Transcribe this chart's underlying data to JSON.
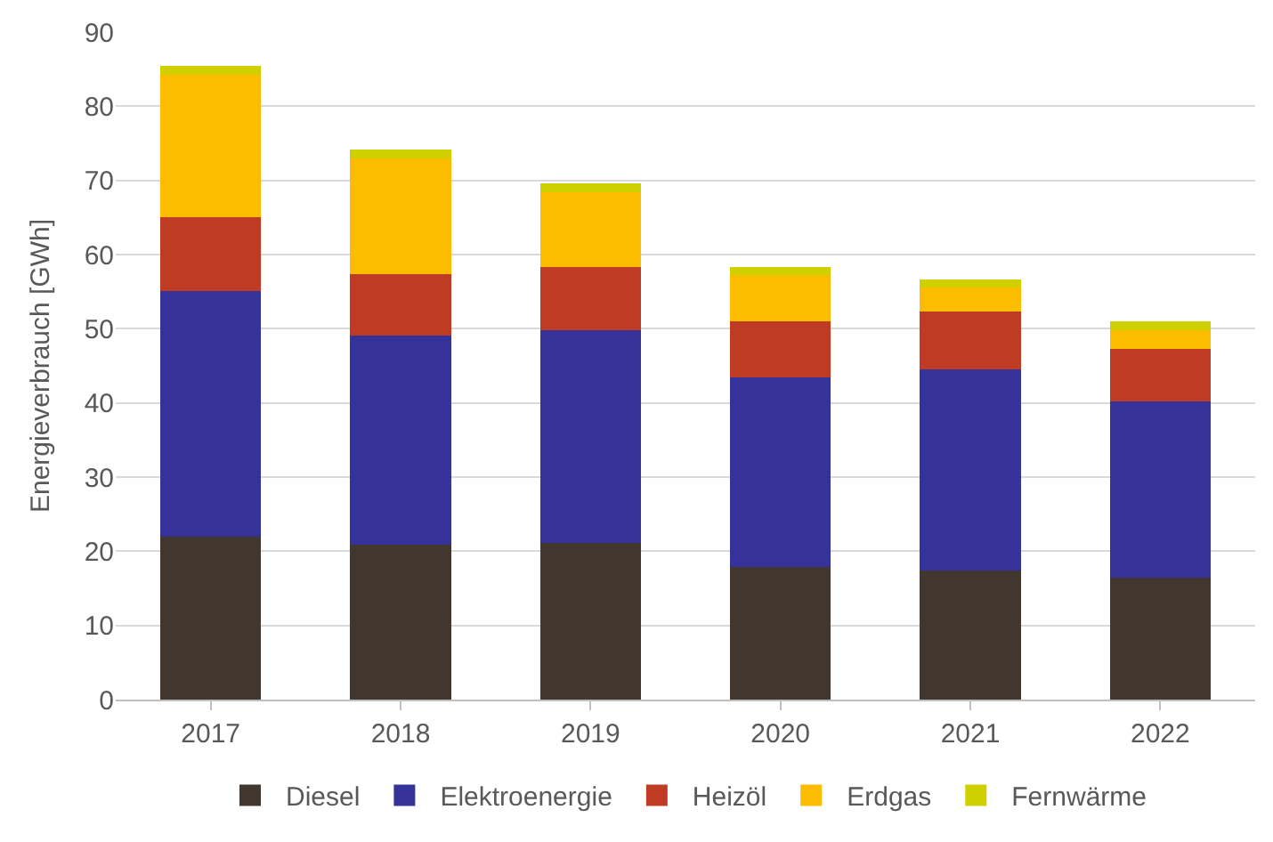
{
  "chart_data": {
    "type": "bar",
    "stacked": true,
    "ylabel": "Energieverbrauch [GWh]",
    "categories": [
      "2017",
      "2018",
      "2019",
      "2020",
      "2021",
      "2022"
    ],
    "series": [
      {
        "name": "Diesel",
        "color": "#41372f",
        "values": [
          22.0,
          20.9,
          21.1,
          17.9,
          17.4,
          16.5
        ]
      },
      {
        "name": "Elektroenergie",
        "color": "#35339a",
        "values": [
          33.1,
          28.2,
          28.7,
          25.5,
          27.1,
          23.7
        ]
      },
      {
        "name": "Heizöl",
        "color": "#c03b23",
        "values": [
          9.9,
          8.3,
          8.5,
          7.6,
          7.8,
          7.1
        ]
      },
      {
        "name": "Erdgas",
        "color": "#fcbc00",
        "values": [
          19.3,
          15.6,
          10.1,
          6.2,
          3.3,
          2.5
        ]
      },
      {
        "name": "Fernwärme",
        "color": "#d0d000",
        "values": [
          1.1,
          1.2,
          1.2,
          1.1,
          1.1,
          1.2
        ]
      }
    ],
    "ylim": [
      0,
      90
    ],
    "yticks": [
      0,
      10,
      20,
      30,
      40,
      50,
      60,
      70,
      80,
      90
    ],
    "grid": "y",
    "legend": "bottom"
  }
}
